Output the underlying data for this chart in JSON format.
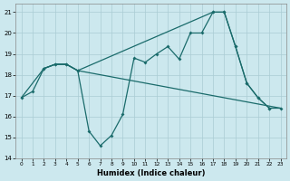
{
  "xlabel": "Humidex (Indice chaleur)",
  "bg_color": "#cce8ee",
  "grid_color": "#aaccd4",
  "line_color": "#1a6b6b",
  "xlim": [
    -0.5,
    23.5
  ],
  "ylim": [
    14,
    21.4
  ],
  "xticks": [
    0,
    1,
    2,
    3,
    4,
    5,
    6,
    7,
    8,
    9,
    10,
    11,
    12,
    13,
    14,
    15,
    16,
    17,
    18,
    19,
    20,
    21,
    22,
    23
  ],
  "yticks": [
    14,
    15,
    16,
    17,
    18,
    19,
    20,
    21
  ],
  "line1_x": [
    0,
    1,
    2,
    3,
    4,
    5,
    6,
    7,
    8,
    9,
    10,
    11,
    12,
    13,
    14,
    15,
    16,
    17,
    18,
    19,
    20,
    21,
    22
  ],
  "line1_y": [
    16.9,
    17.2,
    18.3,
    18.5,
    18.5,
    18.2,
    15.3,
    14.6,
    15.1,
    16.1,
    18.8,
    18.6,
    19.0,
    19.35,
    18.75,
    20.0,
    20.0,
    21.0,
    21.0,
    19.35,
    17.6,
    16.9,
    16.4
  ],
  "line2_x": [
    2,
    3,
    4,
    5,
    17,
    18,
    19,
    20,
    21,
    22,
    23
  ],
  "line2_y": [
    18.3,
    18.5,
    18.5,
    18.2,
    21.0,
    21.0,
    19.35,
    17.6,
    16.9,
    16.4,
    16.4
  ],
  "line3_x": [
    0,
    2,
    3,
    4,
    5,
    23
  ],
  "line3_y": [
    16.9,
    18.3,
    18.5,
    18.5,
    18.2,
    16.4
  ],
  "figsize": [
    3.2,
    2.0
  ],
  "dpi": 100
}
